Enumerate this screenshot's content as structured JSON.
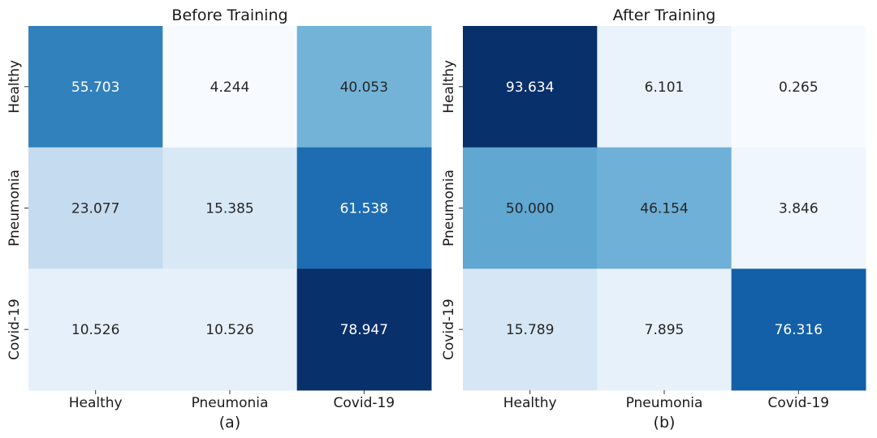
{
  "chart_data": [
    {
      "type": "heatmap",
      "title": "Before Training",
      "xlabel": "(a)",
      "ylabel": "",
      "rows": [
        "Healthy",
        "Pneumonia",
        "Covid-19"
      ],
      "columns": [
        "Healthy",
        "Pneumonia",
        "Covid-19"
      ],
      "values": [
        [
          55.703,
          4.244,
          40.053
        ],
        [
          23.077,
          15.385,
          61.538
        ],
        [
          10.526,
          10.526,
          78.947
        ]
      ],
      "value_labels": [
        [
          "55.703",
          "4.244",
          "40.053"
        ],
        [
          "23.077",
          "15.385",
          "61.538"
        ],
        [
          "10.526",
          "10.526",
          "78.947"
        ]
      ],
      "colormap": "Blues",
      "colorbar": false,
      "grid": false
    },
    {
      "type": "heatmap",
      "title": "After Training",
      "xlabel": "(b)",
      "ylabel": "",
      "rows": [
        "Healthy",
        "Pneumonia",
        "Covid-19"
      ],
      "columns": [
        "Healthy",
        "Pneumonia",
        "Covid-19"
      ],
      "values": [
        [
          93.634,
          6.101,
          0.265
        ],
        [
          50.0,
          46.154,
          3.846
        ],
        [
          15.789,
          7.895,
          76.316
        ]
      ],
      "value_labels": [
        [
          "93.634",
          "6.101",
          "0.265"
        ],
        [
          "50.000",
          "46.154",
          "3.846"
        ],
        [
          "15.789",
          "7.895",
          "76.316"
        ]
      ],
      "colormap": "Blues",
      "colorbar": false,
      "grid": false
    }
  ]
}
